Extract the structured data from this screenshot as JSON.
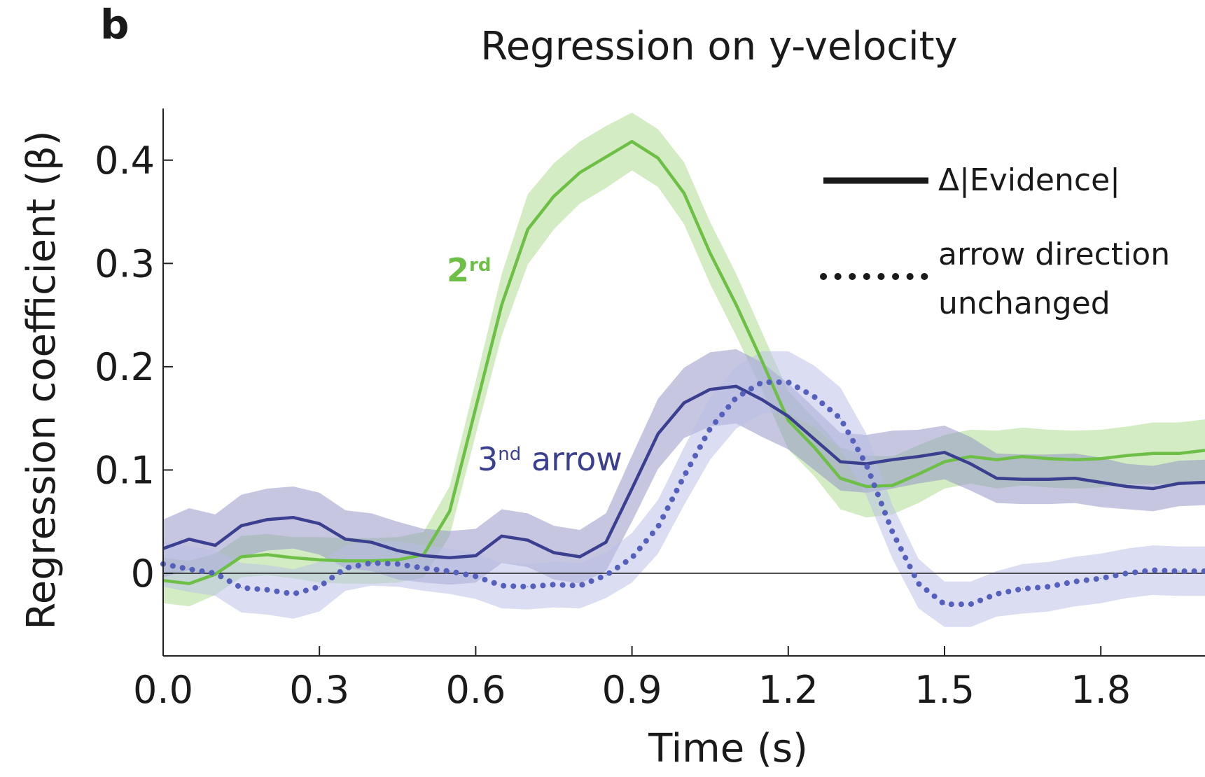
{
  "panel_label": "b",
  "chart_data": {
    "type": "line",
    "title": "Regression on y-velocity",
    "xlabel": "Time (s)",
    "ylabel": "Regression coefficient (β)",
    "xlim": [
      0,
      2.0
    ],
    "ylim": [
      -0.08,
      0.45
    ],
    "xticks": [
      0.0,
      0.3,
      0.6,
      0.9,
      1.2,
      1.5,
      1.8
    ],
    "xtick_labels": [
      "0.0",
      "0.3",
      "0.6",
      "0.9",
      "1.2",
      "1.5",
      "1.8"
    ],
    "yticks": [
      0,
      0.1,
      0.2,
      0.3,
      0.4
    ],
    "ytick_labels": [
      "0",
      "0.1",
      "0.2",
      "0.3",
      "0.4"
    ],
    "zero_line": true,
    "grid": false,
    "legend": {
      "position": "top-right",
      "entries": [
        {
          "style": "solid",
          "label": "Δ|Evidence|"
        },
        {
          "style": "dotted",
          "label_lines": [
            "arrow direction",
            "unchanged"
          ]
        }
      ]
    },
    "annotations": [
      {
        "base": "2",
        "sup": "rd",
        "color": "#6dbf45"
      },
      {
        "base": "3",
        "sup": "nd",
        "rest": " arrow",
        "color": "#3b3f8f"
      }
    ],
    "x": [
      0.0,
      0.05,
      0.1,
      0.15,
      0.2,
      0.25,
      0.3,
      0.35,
      0.4,
      0.45,
      0.5,
      0.55,
      0.6,
      0.65,
      0.7,
      0.75,
      0.8,
      0.85,
      0.9,
      0.95,
      1.0,
      1.05,
      1.1,
      1.15,
      1.2,
      1.25,
      1.3,
      1.35,
      1.4,
      1.45,
      1.5,
      1.55,
      1.6,
      1.65,
      1.7,
      1.75,
      1.8,
      1.85,
      1.9,
      1.95,
      2.0
    ],
    "series": [
      {
        "annotation": "2rd",
        "style": "solid",
        "color": "#6dbf45",
        "band_color": "#a9d98a",
        "values": [
          -0.007,
          -0.01,
          -0.001,
          0.016,
          0.018,
          0.015,
          0.013,
          0.012,
          0.012,
          0.013,
          0.018,
          0.06,
          0.16,
          0.26,
          0.333,
          0.365,
          0.388,
          0.403,
          0.418,
          0.402,
          0.368,
          0.31,
          0.26,
          0.205,
          0.148,
          0.122,
          0.092,
          0.084,
          0.085,
          0.096,
          0.108,
          0.113,
          0.11,
          0.113,
          0.111,
          0.11,
          0.111,
          0.114,
          0.116,
          0.116,
          0.119
        ],
        "band_halfwidth": [
          0.022,
          0.022,
          0.02,
          0.02,
          0.02,
          0.02,
          0.022,
          0.022,
          0.022,
          0.022,
          0.022,
          0.024,
          0.026,
          0.03,
          0.034,
          0.032,
          0.03,
          0.03,
          0.028,
          0.028,
          0.03,
          0.03,
          0.03,
          0.028,
          0.028,
          0.028,
          0.03,
          0.03,
          0.028,
          0.028,
          0.026,
          0.026,
          0.028,
          0.028,
          0.028,
          0.028,
          0.028,
          0.028,
          0.03,
          0.03,
          0.03
        ]
      },
      {
        "annotation": "3nd arrow",
        "style": "solid",
        "color": "#3b3f8f",
        "band_color": "#8d8dc4",
        "values": [
          0.024,
          0.033,
          0.027,
          0.046,
          0.052,
          0.054,
          0.048,
          0.033,
          0.03,
          0.022,
          0.017,
          0.015,
          0.017,
          0.036,
          0.032,
          0.02,
          0.016,
          0.03,
          0.082,
          0.135,
          0.165,
          0.178,
          0.181,
          0.168,
          0.152,
          0.13,
          0.108,
          0.106,
          0.11,
          0.113,
          0.117,
          0.106,
          0.092,
          0.091,
          0.091,
          0.092,
          0.088,
          0.084,
          0.082,
          0.087,
          0.088
        ],
        "band_halfwidth": [
          0.028,
          0.03,
          0.03,
          0.03,
          0.03,
          0.03,
          0.03,
          0.028,
          0.028,
          0.028,
          0.026,
          0.026,
          0.026,
          0.026,
          0.026,
          0.026,
          0.026,
          0.028,
          0.032,
          0.034,
          0.034,
          0.036,
          0.036,
          0.036,
          0.032,
          0.03,
          0.028,
          0.028,
          0.028,
          0.026,
          0.026,
          0.026,
          0.024,
          0.024,
          0.024,
          0.024,
          0.024,
          0.022,
          0.022,
          0.022,
          0.022
        ]
      },
      {
        "annotation": "",
        "style": "dotted",
        "color": "#5560bd",
        "band_color": "#b7bde6",
        "values": [
          0.009,
          0.004,
          0.0,
          -0.014,
          -0.016,
          -0.02,
          -0.013,
          0.005,
          0.01,
          0.009,
          0.005,
          0.002,
          -0.003,
          -0.012,
          -0.013,
          -0.011,
          -0.012,
          -0.002,
          0.015,
          0.045,
          0.094,
          0.14,
          0.17,
          0.185,
          0.185,
          0.171,
          0.15,
          0.105,
          0.04,
          -0.01,
          -0.03,
          -0.03,
          -0.02,
          -0.015,
          -0.013,
          -0.008,
          -0.005,
          0.0,
          0.003,
          0.002,
          0.002
        ],
        "band_halfwidth": [
          0.022,
          0.022,
          0.022,
          0.024,
          0.024,
          0.024,
          0.024,
          0.022,
          0.022,
          0.022,
          0.022,
          0.022,
          0.022,
          0.022,
          0.022,
          0.022,
          0.022,
          0.022,
          0.024,
          0.026,
          0.028,
          0.03,
          0.03,
          0.03,
          0.03,
          0.03,
          0.03,
          0.03,
          0.026,
          0.024,
          0.022,
          0.022,
          0.022,
          0.024,
          0.024,
          0.024,
          0.024,
          0.024,
          0.024,
          0.024,
          0.024
        ]
      }
    ]
  }
}
